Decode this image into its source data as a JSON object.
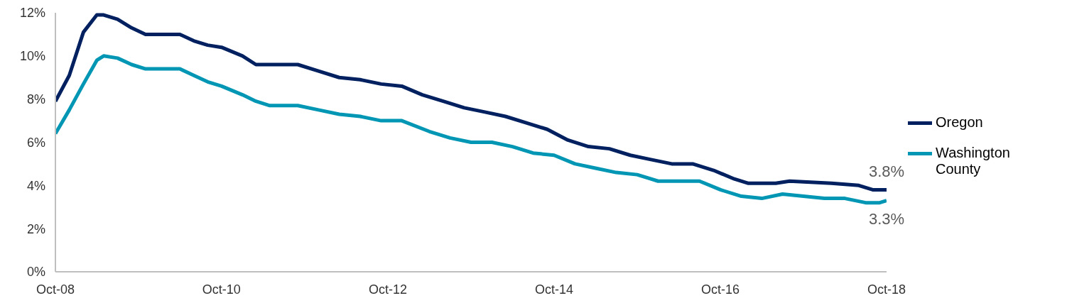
{
  "chart_data": {
    "type": "line",
    "xlim": [
      "2008-10",
      "2018-10"
    ],
    "xticks": [
      {
        "value": "2008-10",
        "label": "Oct-08"
      },
      {
        "value": "2010-10",
        "label": "Oct-10"
      },
      {
        "value": "2012-10",
        "label": "Oct-12"
      },
      {
        "value": "2014-10",
        "label": "Oct-14"
      },
      {
        "value": "2016-10",
        "label": "Oct-16"
      },
      {
        "value": "2018-10",
        "label": "Oct-18"
      }
    ],
    "ylim": [
      0,
      12
    ],
    "yticks": [
      {
        "value": 0,
        "label": "0%"
      },
      {
        "value": 2,
        "label": "2%"
      },
      {
        "value": 4,
        "label": "4%"
      },
      {
        "value": 6,
        "label": "6%"
      },
      {
        "value": 8,
        "label": "8%"
      },
      {
        "value": 10,
        "label": "10%"
      },
      {
        "value": 12,
        "label": "12%"
      }
    ],
    "grid": false,
    "legend": "right",
    "marker": "none",
    "line_style": "solid",
    "series": [
      {
        "name": "Oregon",
        "color": "#002060",
        "x": [
          "2008-10",
          "2008-12",
          "2009-02",
          "2009-04",
          "2009-05",
          "2009-07",
          "2009-09",
          "2009-11",
          "2010-04",
          "2010-06",
          "2010-08",
          "2010-10",
          "2011-01",
          "2011-03",
          "2011-09",
          "2011-12",
          "2012-03",
          "2012-06",
          "2012-09",
          "2012-12",
          "2013-03",
          "2013-06",
          "2013-09",
          "2013-12",
          "2014-03",
          "2014-06",
          "2014-09",
          "2014-12",
          "2015-03",
          "2015-06",
          "2015-09",
          "2015-12",
          "2016-03",
          "2016-06",
          "2016-09",
          "2016-12",
          "2017-02",
          "2017-06",
          "2017-08",
          "2018-02",
          "2018-06",
          "2018-08",
          "2018-10"
        ],
        "values": [
          7.9,
          9.1,
          11.1,
          11.9,
          11.9,
          11.7,
          11.3,
          11.0,
          11.0,
          10.7,
          10.5,
          10.4,
          10.0,
          9.6,
          9.6,
          9.3,
          9.0,
          8.9,
          8.7,
          8.6,
          8.2,
          7.9,
          7.6,
          7.4,
          7.2,
          6.9,
          6.6,
          6.1,
          5.8,
          5.7,
          5.4,
          5.2,
          5.0,
          5.0,
          4.7,
          4.3,
          4.1,
          4.1,
          4.2,
          4.1,
          4.0,
          3.8,
          3.8
        ]
      },
      {
        "name": "Washington County",
        "color": "#0096b4",
        "x": [
          "2008-10",
          "2008-12",
          "2009-02",
          "2009-04",
          "2009-05",
          "2009-07",
          "2009-09",
          "2009-11",
          "2010-04",
          "2010-06",
          "2010-08",
          "2010-10",
          "2011-01",
          "2011-03",
          "2011-05",
          "2011-09",
          "2011-12",
          "2012-03",
          "2012-06",
          "2012-09",
          "2012-12",
          "2013-04",
          "2013-07",
          "2013-10",
          "2014-01",
          "2014-04",
          "2014-07",
          "2014-10",
          "2015-01",
          "2015-04",
          "2015-07",
          "2015-10",
          "2016-01",
          "2016-04",
          "2016-07",
          "2016-10",
          "2017-01",
          "2017-04",
          "2017-07",
          "2017-10",
          "2018-01",
          "2018-04",
          "2018-07",
          "2018-09",
          "2018-10"
        ],
        "values": [
          6.4,
          7.5,
          8.7,
          9.8,
          10.0,
          9.9,
          9.6,
          9.4,
          9.4,
          9.1,
          8.8,
          8.6,
          8.2,
          7.9,
          7.7,
          7.7,
          7.5,
          7.3,
          7.2,
          7.0,
          7.0,
          6.5,
          6.2,
          6.0,
          6.0,
          5.8,
          5.5,
          5.4,
          5.0,
          4.8,
          4.6,
          4.5,
          4.2,
          4.2,
          4.2,
          3.8,
          3.5,
          3.4,
          3.6,
          3.5,
          3.4,
          3.4,
          3.2,
          3.2,
          3.3
        ]
      }
    ],
    "annotations": [
      {
        "text": "3.8%",
        "x": "2018-10",
        "y": 3.8
      },
      {
        "text": "3.3%",
        "x": "2018-10",
        "y": 3.3
      }
    ]
  }
}
